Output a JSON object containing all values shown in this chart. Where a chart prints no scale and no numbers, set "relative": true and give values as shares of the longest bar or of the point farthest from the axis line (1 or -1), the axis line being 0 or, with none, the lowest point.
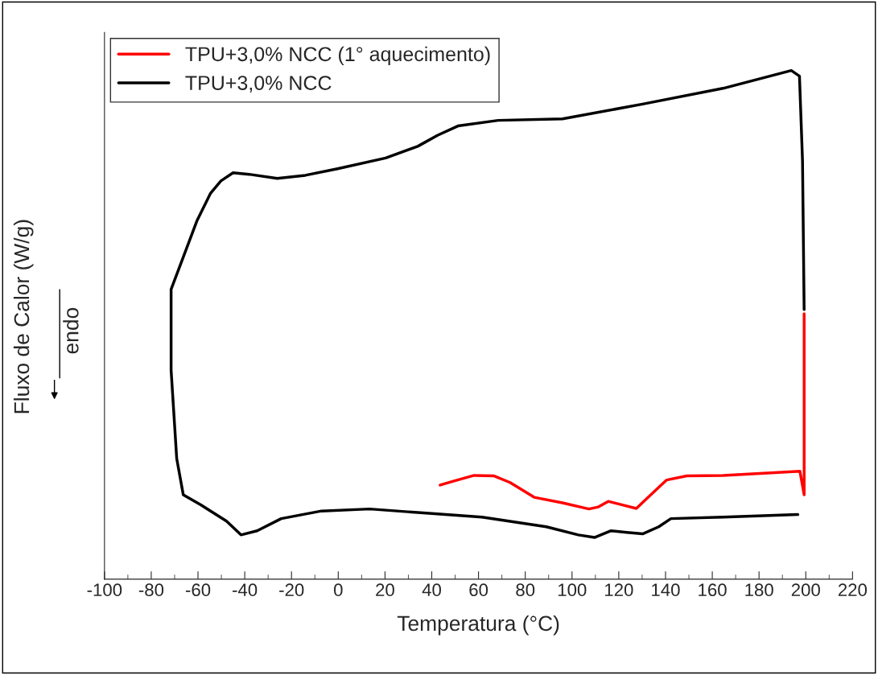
{
  "chart_data": {
    "type": "line",
    "relative": true,
    "xlabel": "Temperatura (°C)",
    "ylabel": "Fluxo de Calor (W/g)",
    "annotations": [
      "endo"
    ],
    "xlim": [
      -100,
      220
    ],
    "xticks": [
      -100,
      -80,
      -60,
      -40,
      -20,
      0,
      20,
      40,
      60,
      80,
      100,
      120,
      140,
      160,
      180,
      200,
      220
    ],
    "tick_labels": "x",
    "legend": "top left",
    "grid": false,
    "series": [
      {
        "name": "TPU+3,0% NCC (1° aquecimento)",
        "color": "#ff0000",
        "x": [
          43.6,
          49.5,
          58.1,
          66.7,
          73.5,
          83.8,
          95.9,
          107.2,
          111.3,
          115.5,
          121.6,
          127.5,
          133.7,
          140.5,
          149.1,
          164.6,
          197.5,
          199.3,
          199.3
        ],
        "values": [
          0.185,
          0.193,
          0.204,
          0.203,
          0.19,
          0.161,
          0.15,
          0.138,
          0.142,
          0.153,
          0.146,
          0.139,
          0.166,
          0.195,
          0.203,
          0.204,
          0.212,
          0.166,
          0.522
        ]
      },
      {
        "name": "TPU+3,0% NCC",
        "color": "#000000",
        "x": [
          199.3,
          198.6,
          197.3,
          193.8,
          164.6,
          130.2,
          95.9,
          68.4,
          51.2,
          42.6,
          34.0,
          20.3,
          -0.3,
          -14.1,
          -26.1,
          -38.1,
          -45.0,
          -50.2,
          -54.6,
          -60.5,
          -66.3,
          -71.5,
          -71.5,
          -69.1,
          -66.3,
          -58.8,
          -47.8,
          -41.6,
          -34.7,
          -24.4,
          -7.2,
          13.4,
          34.0,
          61.5,
          89.0,
          102.7,
          109.6,
          116.5,
          123.4,
          130.2,
          137.1,
          142.3,
          164.6,
          196.6
        ],
        "values": [
          0.53,
          0.823,
          0.989,
          1.0,
          0.965,
          0.934,
          0.905,
          0.902,
          0.891,
          0.873,
          0.851,
          0.828,
          0.807,
          0.794,
          0.788,
          0.796,
          0.799,
          0.783,
          0.759,
          0.704,
          0.633,
          0.57,
          0.411,
          0.237,
          0.166,
          0.146,
          0.114,
          0.087,
          0.095,
          0.119,
          0.134,
          0.138,
          0.131,
          0.122,
          0.103,
          0.087,
          0.082,
          0.095,
          0.092,
          0.089,
          0.103,
          0.119,
          0.122,
          0.127
        ]
      }
    ]
  }
}
